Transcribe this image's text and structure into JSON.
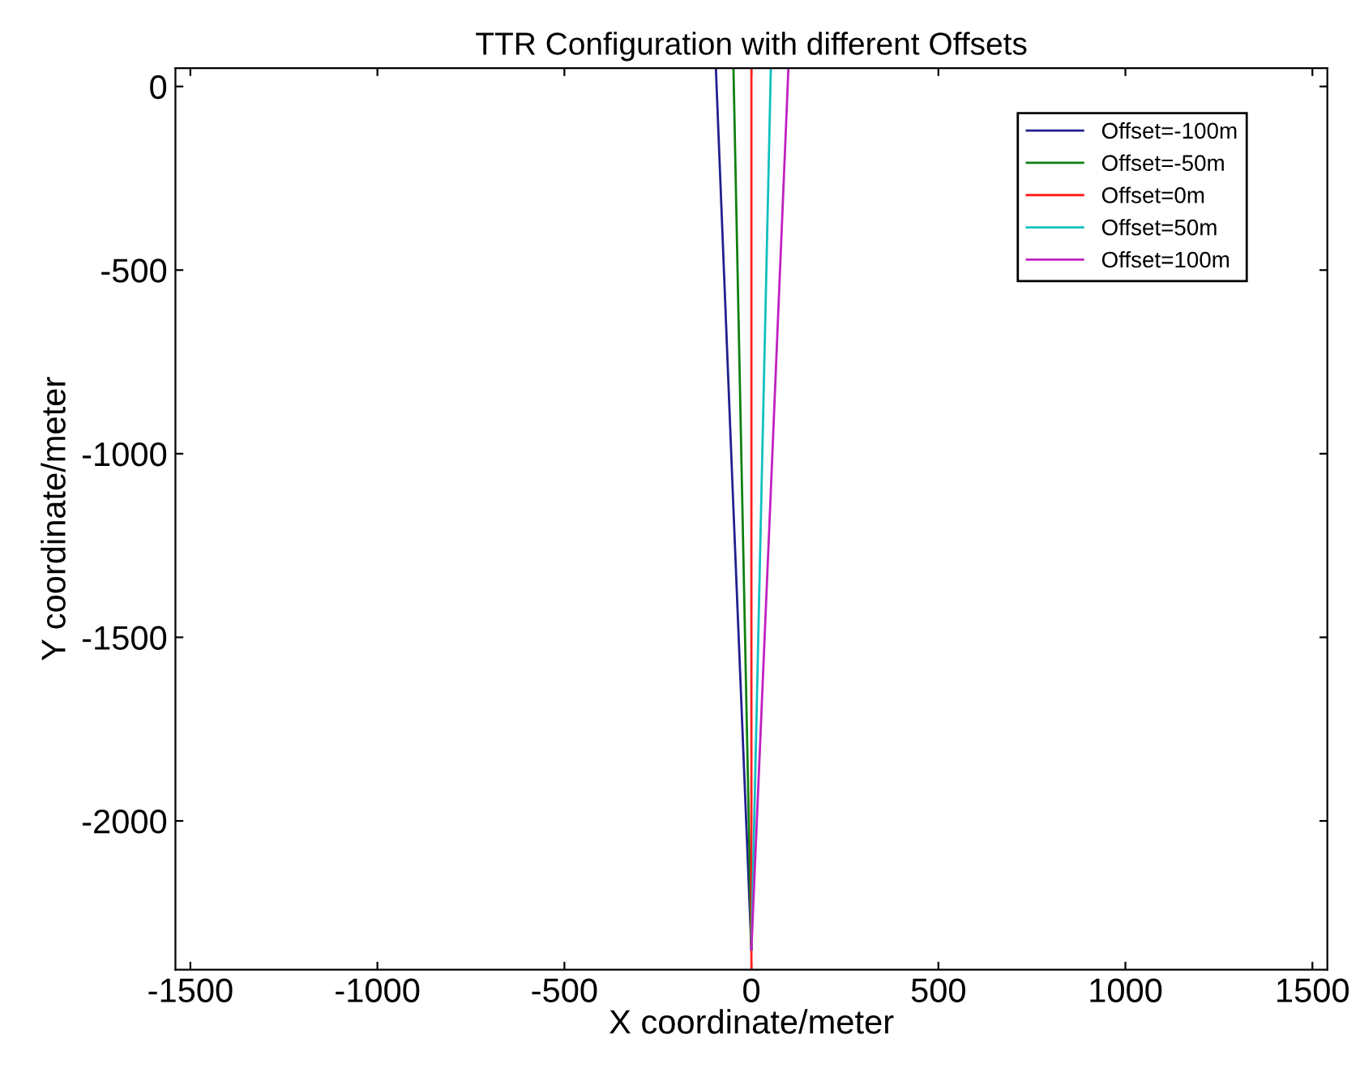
{
  "chart_data": {
    "type": "line",
    "title": "TTR Configuration with different Offsets",
    "xlabel": "X coordinate/meter",
    "ylabel": "Y coordinate/meter",
    "xlim": [
      -1540,
      1540
    ],
    "ylim": [
      -2405,
      50
    ],
    "xticks": [
      -1500,
      -1000,
      -500,
      0,
      500,
      1000,
      1500
    ],
    "yticks": [
      -2000,
      -1500,
      -1000,
      -500,
      0
    ],
    "grid": false,
    "legend": "top right",
    "line_style": "solid",
    "marker": "none",
    "series": [
      {
        "name": "Offset=-100m",
        "color": "#202090",
        "x": [
          -95,
          -50,
          0
        ],
        "values": [
          50,
          -1100,
          -2350
        ]
      },
      {
        "name": "Offset=-50m",
        "color": "#108010",
        "x": [
          -48,
          -25,
          0
        ],
        "values": [
          50,
          -1100,
          -2350
        ]
      },
      {
        "name": "Offset=0m",
        "color": "#ff2020",
        "x": [
          0,
          0
        ],
        "values": [
          50,
          -2405
        ]
      },
      {
        "name": "Offset=50m",
        "color": "#10c0c0",
        "x": [
          52,
          27,
          0
        ],
        "values": [
          50,
          -1100,
          -2350
        ]
      },
      {
        "name": "Offset=100m",
        "color": "#c020c0",
        "x": [
          99,
          52,
          0
        ],
        "values": [
          50,
          -1100,
          -2350
        ]
      }
    ]
  }
}
